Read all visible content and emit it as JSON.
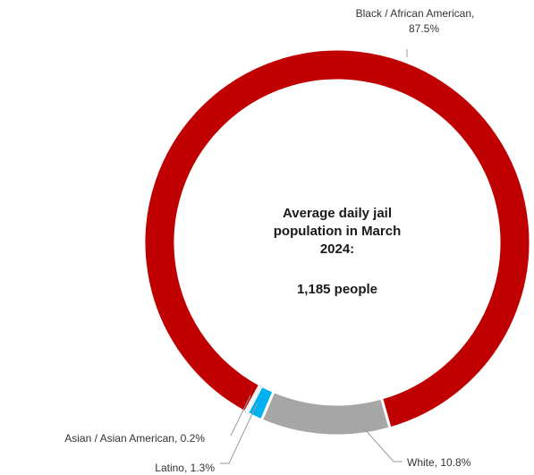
{
  "chart_data": {
    "type": "pie",
    "variant": "donut",
    "start_angle_deg": 208.5,
    "slices": [
      {
        "label": "Black / African American, 87.5%",
        "category": "Black / African American",
        "value": 87.5,
        "color": "#c00000"
      },
      {
        "label": "White, 10.8%",
        "category": "White",
        "value": 10.8,
        "color": "#a6a6a6"
      },
      {
        "label": "Latino, 1.3%",
        "category": "Latino",
        "value": 1.3,
        "color": "#00b0f0"
      },
      {
        "label": "Asian / Asian American, 0.2%",
        "category": "Asian / Asian American",
        "value": 0.2,
        "color": "#ffffff"
      }
    ],
    "center_text": {
      "line1": "Average daily jail",
      "line2": "population in March",
      "line3": "2024:",
      "line4": "1,185 people"
    }
  }
}
